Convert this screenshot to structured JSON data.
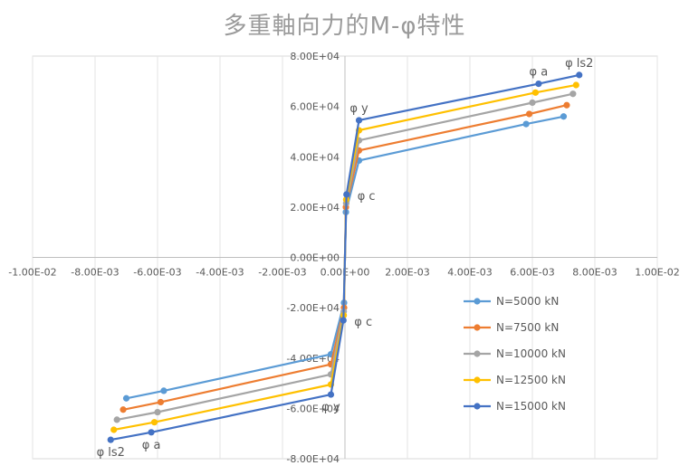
{
  "chart_data": {
    "type": "line",
    "title": "多重軸向力的M-φ特性",
    "xlabel": "",
    "ylabel": "",
    "xlim": [
      -0.01,
      0.01
    ],
    "ylim": [
      -80000,
      80000
    ],
    "x_tick_labels": [
      "-1.00E-02",
      "-8.00E-03",
      "-6.00E-03",
      "-4.00E-03",
      "-2.00E-03",
      "0.00E+00",
      "2.00E-03",
      "4.00E-03",
      "6.00E-03",
      "8.00E-03",
      "1.00E-02"
    ],
    "x_ticks": [
      -0.01,
      -0.008,
      -0.006,
      -0.004,
      -0.002,
      0,
      0.002,
      0.004,
      0.006,
      0.008,
      0.01
    ],
    "y_tick_labels": [
      "8.00E+04",
      "6.00E+04",
      "4.00E+04",
      "2.00E+04",
      "0.00E+00",
      "-2.00E+04",
      "-4.00E+04",
      "-6.00E+04",
      "-8.00E+04"
    ],
    "y_ticks": [
      80000,
      60000,
      40000,
      20000,
      0,
      -20000,
      -40000,
      -60000,
      -80000
    ],
    "grid": "vertical",
    "legend_position": "right",
    "series": [
      {
        "name": "N=5000 kN",
        "color": "#5B9BD5",
        "x": [
          -0.007,
          -0.0058,
          -0.00045,
          -3e-05,
          0,
          3e-05,
          0.00045,
          0.0058,
          0.007
        ],
        "y": [
          -56000,
          -53000,
          -38500,
          -18000,
          0,
          18000,
          38500,
          53000,
          56000
        ]
      },
      {
        "name": "N=7500 kN",
        "color": "#ED7D31",
        "x": [
          -0.0071,
          -0.0059,
          -0.00045,
          -3e-05,
          0,
          3e-05,
          0.00045,
          0.0059,
          0.0071
        ],
        "y": [
          -60500,
          -57500,
          -42500,
          -20000,
          0,
          20000,
          42500,
          57000,
          60500
        ]
      },
      {
        "name": "N=10000 kN",
        "color": "#A5A5A5",
        "x": [
          -0.0073,
          -0.006,
          -0.00045,
          -4e-05,
          0,
          4e-05,
          0.00045,
          0.006,
          0.0073
        ],
        "y": [
          -64500,
          -61500,
          -46500,
          -21500,
          0,
          21500,
          46500,
          61500,
          65000
        ]
      },
      {
        "name": "N=12500 kN",
        "color": "#FFC000",
        "x": [
          -0.0074,
          -0.0061,
          -0.00045,
          -4e-05,
          0,
          4e-05,
          0.00045,
          0.0061,
          0.0074
        ],
        "y": [
          -68500,
          -65500,
          -50500,
          -23000,
          0,
          23000,
          50500,
          65500,
          68500
        ]
      },
      {
        "name": "N=15000 kN",
        "color": "#4472C4",
        "x": [
          -0.0075,
          -0.0062,
          -0.00045,
          -5e-05,
          0,
          5e-05,
          0.00045,
          0.0062,
          0.0075
        ],
        "y": [
          -72500,
          -69500,
          -54500,
          -25000,
          0,
          25000,
          54500,
          69000,
          72500
        ]
      }
    ],
    "annotations": [
      {
        "text": "φ ls2",
        "x": 0.0075,
        "y": 72500,
        "anchor": "above"
      },
      {
        "text": "φ a",
        "x": 0.0062,
        "y": 69000,
        "anchor": "above"
      },
      {
        "text": "φ y",
        "x": 0.00045,
        "y": 54500,
        "anchor": "above"
      },
      {
        "text": "φ c",
        "x": 5e-05,
        "y": 25000,
        "anchor": "right"
      },
      {
        "text": "φ c",
        "x": -5e-05,
        "y": -25000,
        "anchor": "right"
      },
      {
        "text": "φ y",
        "x": -0.00045,
        "y": -54500,
        "anchor": "below"
      },
      {
        "text": "φ a",
        "x": -0.0062,
        "y": -69500,
        "anchor": "below"
      },
      {
        "text": "φ ls2",
        "x": -0.0075,
        "y": -72500,
        "anchor": "below"
      }
    ]
  }
}
